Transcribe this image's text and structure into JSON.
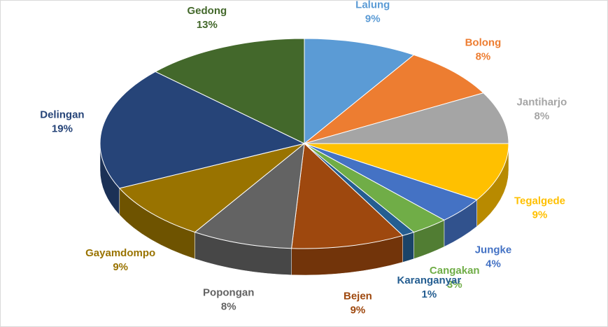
{
  "chart_data": {
    "type": "pie3d",
    "categories": [
      "Lalung",
      "Bolong",
      "Jantiharjo",
      "Tegalgede",
      "Jungke",
      "Cangakan",
      "Karanganyar",
      "Bejen",
      "Popongan",
      "Gayamdompo",
      "Delingan",
      "Gedong"
    ],
    "values": [
      9,
      8,
      8,
      9,
      4,
      3,
      1,
      9,
      8,
      9,
      19,
      13
    ],
    "value_labels": [
      "9%",
      "8%",
      "8%",
      "9%",
      "4%",
      "3%",
      "1%",
      "9%",
      "8%",
      "9%",
      "19%",
      "13%"
    ],
    "colors": [
      "#5b9bd5",
      "#ed7d31",
      "#a5a5a5",
      "#ffc000",
      "#4472c4",
      "#70ad47",
      "#255e91",
      "#9e480e",
      "#636363",
      "#997300",
      "#264478",
      "#43682b"
    ]
  }
}
